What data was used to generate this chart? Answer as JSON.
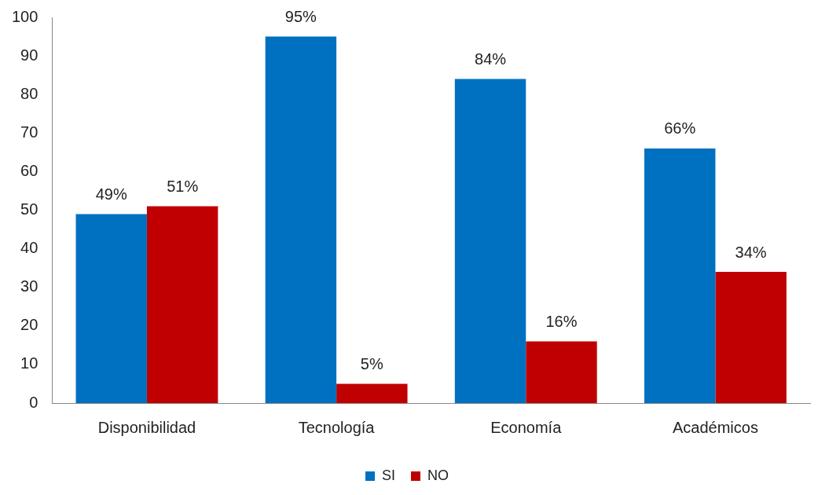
{
  "chart_data": {
    "type": "bar",
    "categories": [
      "Disponibilidad",
      "Tecnología",
      "Economía",
      "Académicos"
    ],
    "series": [
      {
        "name": "SI",
        "color": "#0070c0",
        "values": [
          49,
          95,
          84,
          66
        ],
        "value_labels": [
          "49%",
          "95%",
          "84%",
          "66%"
        ]
      },
      {
        "name": "NO",
        "color": "#c00000",
        "values": [
          51,
          5,
          16,
          34
        ],
        "value_labels": [
          "51%",
          "5%",
          "16%",
          "34%"
        ]
      }
    ],
    "ylim": [
      0,
      100
    ],
    "yticks": [
      0,
      10,
      20,
      30,
      40,
      50,
      60,
      70,
      80,
      90,
      100
    ],
    "grid": false,
    "legend": "bottom"
  }
}
